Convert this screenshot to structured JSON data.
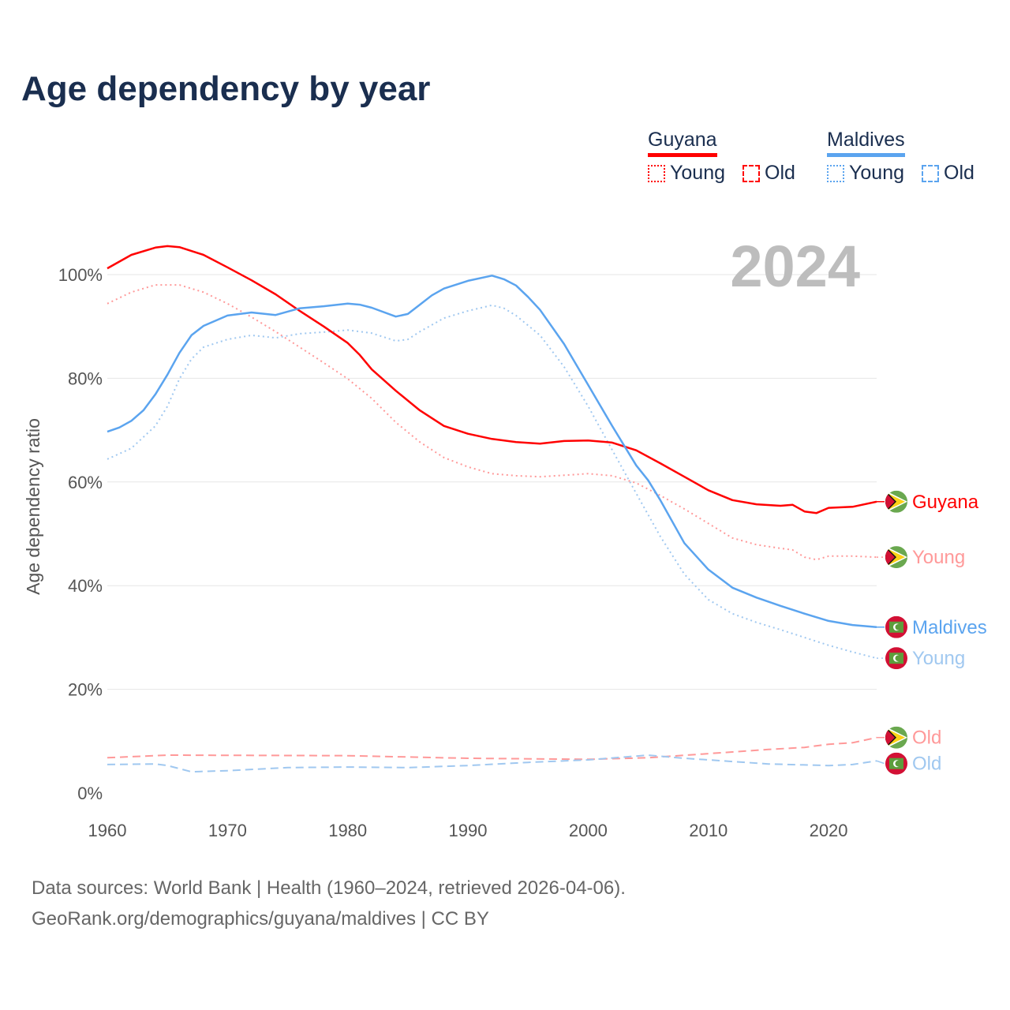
{
  "title": "Age dependency by year",
  "legend": {
    "countries": [
      {
        "name": "Guyana",
        "color": "#ff0000",
        "young": "Young",
        "old": "Old"
      },
      {
        "name": "Maldives",
        "color": "#5ba4ef",
        "young": "Young",
        "old": "Old"
      }
    ]
  },
  "year_label": "2024",
  "footer": {
    "line1": "Data sources: World Bank | Health (1960–2024, retrieved 2026-04-06).",
    "line2": "GeoRank.org/demographics/guyana/maldives | CC BY"
  },
  "chart_data": {
    "type": "line",
    "title": "Age dependency by year",
    "xlabel": "",
    "ylabel": "Age dependency ratio",
    "xlim": [
      1960,
      2024
    ],
    "ylim": [
      0,
      110
    ],
    "x_ticks": [
      "1960",
      "1970",
      "1980",
      "1990",
      "2000",
      "2010",
      "2020"
    ],
    "y_ticks": [
      "0%",
      "20%",
      "40%",
      "60%",
      "80%",
      "100%"
    ],
    "grid": true,
    "series": [
      {
        "name": "Guyana",
        "end_label": "Guyana",
        "flag": "guyana",
        "color": "#ff0000",
        "style": "solid",
        "x": [
          1960,
          1962,
          1964,
          1965,
          1966,
          1968,
          1970,
          1972,
          1974,
          1976,
          1978,
          1980,
          1981,
          1982,
          1984,
          1986,
          1988,
          1990,
          1992,
          1994,
          1996,
          1998,
          2000,
          2002,
          2004,
          2006,
          2008,
          2010,
          2012,
          2014,
          2016,
          2017,
          2018,
          2019,
          2020,
          2022,
          2024
        ],
        "y": [
          101.2,
          103.8,
          105.2,
          105.5,
          105.3,
          103.8,
          101.4,
          98.9,
          96.2,
          93,
          90,
          86.8,
          84.5,
          81.7,
          77.6,
          73.8,
          70.8,
          69.3,
          68.3,
          67.7,
          67.4,
          67.9,
          68,
          67.6,
          66.1,
          63.6,
          61,
          58.4,
          56.5,
          55.7,
          55.4,
          55.6,
          54.3,
          54,
          55,
          55.2,
          56.2
        ]
      },
      {
        "name": "Guyana Young",
        "end_label": "Young",
        "flag": "guyana",
        "color": "#ff9999",
        "style": "dotted",
        "x": [
          1960,
          1962,
          1964,
          1966,
          1968,
          1970,
          1972,
          1974,
          1976,
          1978,
          1980,
          1982,
          1984,
          1986,
          1988,
          1990,
          1992,
          1994,
          1996,
          1998,
          2000,
          2002,
          2004,
          2006,
          2008,
          2010,
          2012,
          2014,
          2016,
          2017,
          2018,
          2019,
          2020,
          2022,
          2024
        ],
        "y": [
          94.4,
          96.6,
          98,
          98,
          96.6,
          94.4,
          91.8,
          89,
          86,
          83,
          79.9,
          76.1,
          71.5,
          67.7,
          64.7,
          62.9,
          61.6,
          61.2,
          61,
          61.3,
          61.6,
          61.2,
          59.8,
          57.4,
          54.8,
          52,
          49.2,
          47.9,
          47.2,
          46.9,
          45.5,
          45,
          45.7,
          45.7,
          45.5
        ]
      },
      {
        "name": "Guyana Old",
        "end_label": "Old",
        "flag": "guyana",
        "color": "#ff9999",
        "style": "dashed",
        "x": [
          1960,
          1965,
          1980,
          1990,
          2000,
          2005,
          2010,
          2015,
          2018,
          2020,
          2022,
          2024
        ],
        "y": [
          6.8,
          7.3,
          7.2,
          6.7,
          6.5,
          6.8,
          7.6,
          8.4,
          8.8,
          9.4,
          9.7,
          10.7
        ]
      },
      {
        "name": "Maldives",
        "end_label": "Maldives",
        "flag": "maldives",
        "color": "#5ba4ef",
        "style": "solid",
        "x": [
          1960,
          1961,
          1962,
          1963,
          1964,
          1965,
          1966,
          1967,
          1968,
          1970,
          1972,
          1974,
          1976,
          1978,
          1980,
          1981,
          1982,
          1984,
          1985,
          1986,
          1987,
          1988,
          1990,
          1992,
          1993,
          1994,
          1995,
          1996,
          1998,
          2000,
          2002,
          2004,
          2005,
          2006,
          2008,
          2010,
          2012,
          2014,
          2016,
          2018,
          2020,
          2022,
          2024
        ],
        "y": [
          69.7,
          70.5,
          71.8,
          73.8,
          76.9,
          80.7,
          84.9,
          88.3,
          90.1,
          92.1,
          92.7,
          92.2,
          93.5,
          93.9,
          94.4,
          94.2,
          93.6,
          91.9,
          92.4,
          94.2,
          96,
          97.3,
          98.8,
          99.8,
          99.1,
          97.9,
          95.7,
          93.2,
          86.6,
          78.7,
          70.8,
          63.2,
          60.3,
          56.5,
          48.2,
          43.1,
          39.6,
          37.7,
          36.1,
          34.6,
          33.2,
          32.4,
          32
        ]
      },
      {
        "name": "Maldives Young",
        "end_label": "Young",
        "flag": "maldives",
        "color": "#a0c8f0",
        "style": "dotted",
        "x": [
          1960,
          1962,
          1964,
          1965,
          1966,
          1967,
          1968,
          1970,
          1972,
          1974,
          1976,
          1978,
          1980,
          1982,
          1984,
          1985,
          1986,
          1988,
          1990,
          1992,
          1993,
          1994,
          1996,
          1998,
          2000,
          2002,
          2004,
          2006,
          2008,
          2010,
          2012,
          2014,
          2016,
          2018,
          2020,
          2022,
          2024
        ],
        "y": [
          64.4,
          66.5,
          70.8,
          74.6,
          79.9,
          83.7,
          86,
          87.5,
          88.3,
          87.8,
          88.6,
          88.9,
          89.3,
          88.7,
          87.2,
          87.5,
          89,
          91.6,
          93,
          94.1,
          93.5,
          92.1,
          88.3,
          82.2,
          74.6,
          66.2,
          57.8,
          49.5,
          42.2,
          37.3,
          34.6,
          32.9,
          31.5,
          30,
          28.5,
          27.2,
          26
        ]
      },
      {
        "name": "Maldives Old",
        "end_label": "Old",
        "flag": "maldives",
        "color": "#a0c8f0",
        "style": "dashed",
        "x": [
          1960,
          1964,
          1965,
          1967,
          1970,
          1975,
          1980,
          1985,
          1990,
          1995,
          2000,
          2005,
          2008,
          2010,
          2015,
          2020,
          2022,
          2024
        ],
        "y": [
          5.5,
          5.6,
          5.3,
          4.1,
          4.3,
          4.9,
          5,
          4.9,
          5.3,
          5.9,
          6.4,
          7.3,
          6.7,
          6.4,
          5.6,
          5.3,
          5.5,
          6.2
        ]
      }
    ]
  }
}
